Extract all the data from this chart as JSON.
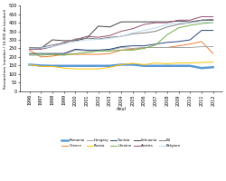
{
  "years": [
    1996,
    1997,
    1998,
    1999,
    2000,
    2001,
    2002,
    2003,
    2004,
    2005,
    2006,
    2007,
    2008,
    2009,
    2010,
    2011,
    2012
  ],
  "series": {
    "Romania": {
      "color": "#5B9BD5",
      "linewidth": 1.8,
      "values": [
        155,
        150,
        148,
        148,
        148,
        148,
        148,
        148,
        155,
        155,
        148,
        148,
        148,
        148,
        148,
        135,
        140
      ]
    },
    "Greece": {
      "color": "#ED7D31",
      "linewidth": 0.7,
      "values": [
        240,
        200,
        205,
        215,
        215,
        215,
        215,
        220,
        240,
        245,
        255,
        255,
        255,
        265,
        275,
        290,
        220
      ]
    },
    "Hungary": {
      "color": "#A5A5A5",
      "linewidth": 0.7,
      "values": [
        210,
        210,
        215,
        215,
        240,
        235,
        235,
        240,
        255,
        250,
        255,
        255,
        255,
        255,
        255,
        260,
        260
      ]
    },
    "Russia": {
      "color": "#FFC000",
      "linewidth": 0.7,
      "values": [
        155,
        145,
        145,
        135,
        130,
        130,
        130,
        140,
        155,
        163,
        155,
        165,
        160,
        165,
        165,
        168,
        170
      ]
    },
    "Tunisia": {
      "color": "#264478",
      "linewidth": 0.7,
      "values": [
        220,
        220,
        220,
        220,
        245,
        240,
        240,
        245,
        260,
        265,
        265,
        275,
        285,
        290,
        300,
        355,
        355
      ]
    },
    "Ukraine": {
      "color": "#70AD47",
      "linewidth": 0.7,
      "values": [
        215,
        215,
        215,
        210,
        220,
        225,
        235,
        235,
        240,
        240,
        250,
        270,
        330,
        370,
        385,
        395,
        400
      ]
    },
    "Lithuania": {
      "color": "#404040",
      "linewidth": 0.7,
      "values": [
        250,
        250,
        300,
        295,
        295,
        310,
        380,
        375,
        405,
        405,
        405,
        405,
        405,
        410,
        405,
        415,
        415
      ]
    },
    "Austria": {
      "color": "#954F72",
      "linewidth": 0.7,
      "values": [
        245,
        245,
        260,
        285,
        300,
        320,
        315,
        325,
        350,
        365,
        390,
        400,
        400,
        415,
        415,
        435,
        435
      ]
    },
    "EU": {
      "color": "#808080",
      "linewidth": 0.7,
      "values": [
        255,
        255,
        270,
        280,
        305,
        310,
        305,
        315,
        320,
        335,
        340,
        350,
        375,
        390,
        400,
        415,
        420
      ]
    },
    "Belgium": {
      "color": "#BDD7EE",
      "linewidth": 0.7,
      "values": [
        250,
        252,
        260,
        275,
        290,
        300,
        302,
        308,
        320,
        340,
        355,
        370,
        390,
        398,
        400,
        405,
        400
      ]
    }
  },
  "ylabel": "Researchers (number / 10,000 de locuitori)",
  "xlabel": "Anul",
  "ylim": [
    0,
    500
  ],
  "yticks": [
    0,
    50,
    100,
    150,
    200,
    250,
    300,
    350,
    400,
    450,
    500
  ],
  "background_color": "#ffffff"
}
